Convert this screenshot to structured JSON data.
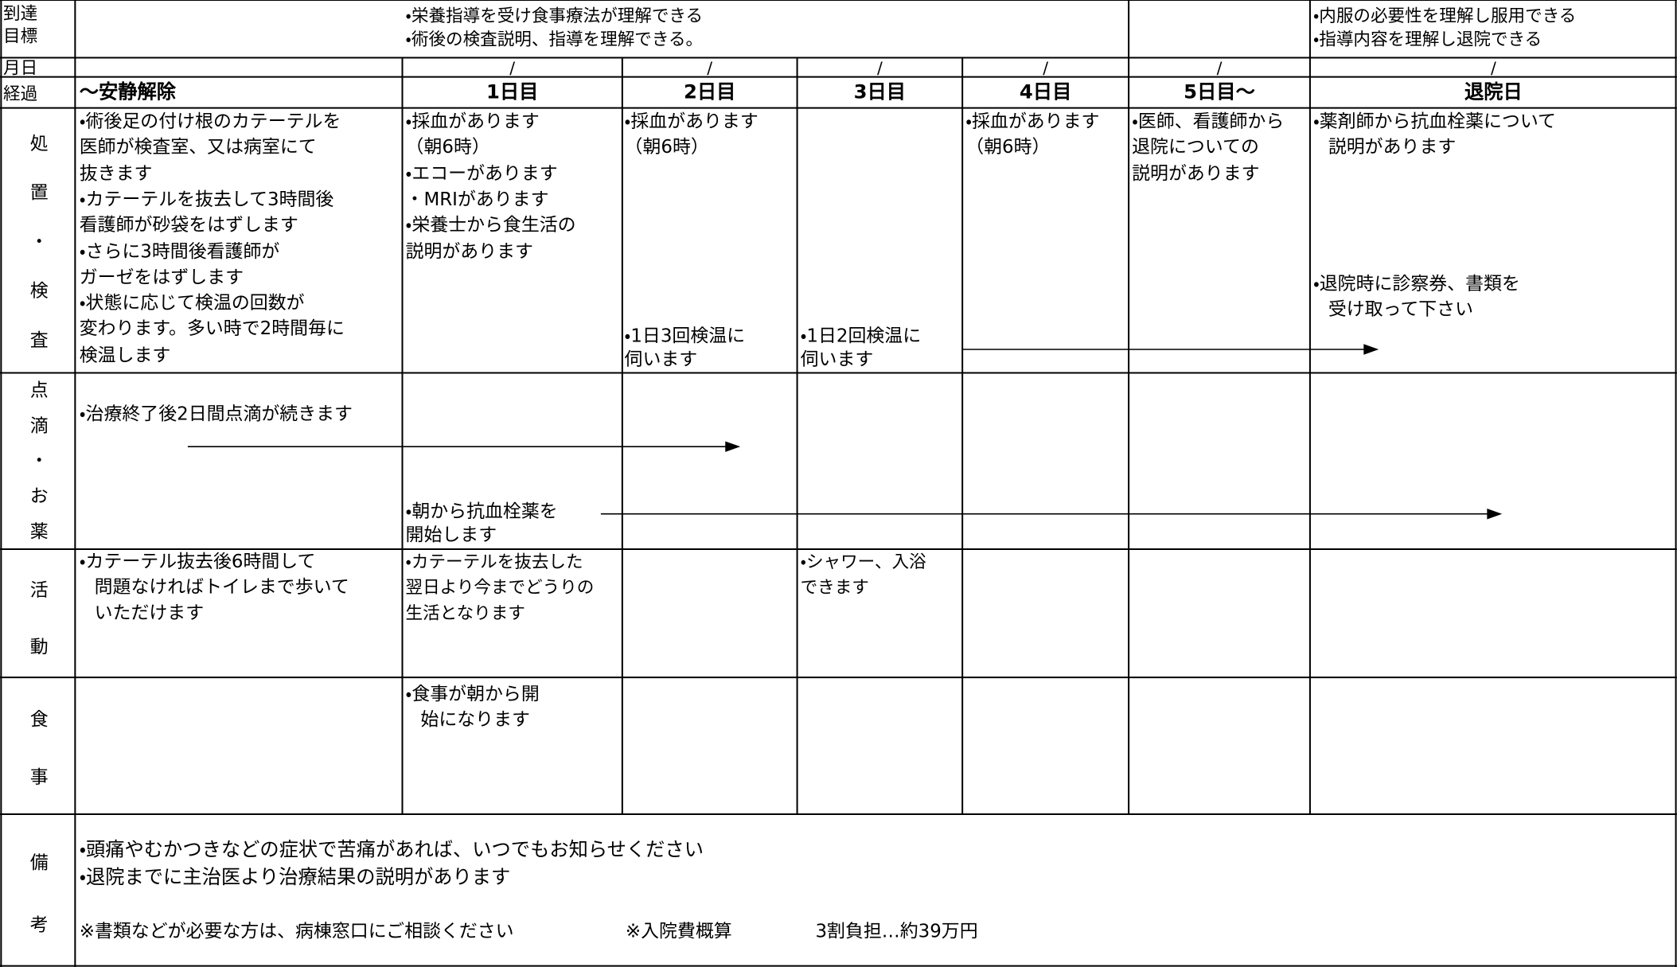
{
  "labels": {
    "goal": [
      "到達",
      "目標"
    ],
    "date": "月日",
    "course": "経過",
    "treatment": [
      "処",
      "置",
      "・",
      "検",
      "査"
    ],
    "drip": [
      "点",
      "滴",
      "・",
      "お",
      "薬"
    ],
    "activity": [
      "活",
      "動"
    ],
    "meal": [
      "食",
      "事"
    ],
    "notes": [
      "備",
      "考"
    ]
  },
  "goals": {
    "stay": [
      "・栄養指導を受け食事療法が理解できる",
      "・術後の検査説明、指導を理解できる。"
    ],
    "discharge": [
      "・内服の必要性を理解し服用できる",
      "・指導内容を理解し退院できる"
    ]
  },
  "dates": [
    "/",
    "/",
    "/",
    "/",
    "/",
    "/"
  ],
  "stages": [
    "～安静解除",
    "1日目",
    "2日目",
    "3日目",
    "4日目",
    "5日目～",
    "退院日"
  ],
  "treatment": {
    "rest": [
      "・術後足の付け根のカテーテルを",
      "医師が検査室、又は病室にて",
      "抜きます",
      "・カテーテルを抜去して3時間後",
      "看護師が砂袋をはずします",
      "・さらに3時間後看護師が",
      "ガーゼをはずします",
      "・状態に応じて検温の回数が",
      "変わります。多い時で2時間毎に",
      "検温します"
    ],
    "day1": [
      "・採血があります",
      "（朝6時）",
      "・エコーがあります",
      "・MRIがあります",
      "・栄養士から食生活の",
      "説明があります"
    ],
    "day2_top": [
      "・採血があります",
      "（朝6時）"
    ],
    "day2_bottom": [
      "・1日3回検温に",
      "伺います"
    ],
    "day3_bottom": [
      "・1日2回検温に",
      "伺います"
    ],
    "day4": [
      "・採血があります",
      "（朝6時）"
    ],
    "day5": [
      "・医師、看護師から",
      "退院についての",
      "説明があります"
    ],
    "discharge_top": [
      "・薬剤師から抗血栓薬について",
      "説明があります"
    ],
    "discharge_bottom": [
      "・退院時に診察券、書類を",
      "受け取って下さい"
    ]
  },
  "drip": {
    "rest": [
      "・治療終了後2日間点滴が続きます"
    ],
    "day1": [
      "・朝から抗血栓薬を",
      "開始します"
    ]
  },
  "activity": {
    "rest": [
      "・カテーテル抜去後6時間して",
      "問題なければトイレまで歩いて",
      "いただけます"
    ],
    "day1": [
      "・カテーテルを抜去した",
      "翌日より今までどうりの",
      "生活となります"
    ],
    "day3": [
      "・シャワー、入浴",
      "できます"
    ]
  },
  "meal": {
    "day1": [
      "・食事が朝から開",
      "始になります"
    ]
  },
  "notes": {
    "lines": [
      "・頭痛やむかつきなどの症状で苦痛があれば、いつでもお知らせください",
      "・退院までに主治医より治療結果の説明があります"
    ],
    "documents": "※書類などが必要な方は、病棟窓口にご相談ください",
    "cost_label": "※入院費概算",
    "cost": "3割負担…約39万円"
  }
}
